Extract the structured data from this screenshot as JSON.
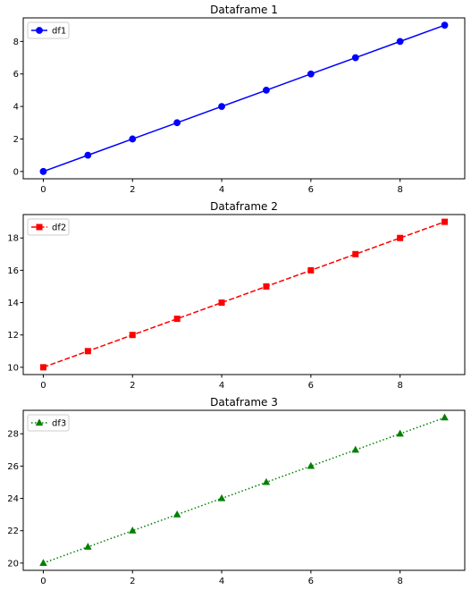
{
  "chart_data": [
    {
      "type": "line",
      "title": "Dataframe 1",
      "x": [
        0,
        1,
        2,
        3,
        4,
        5,
        6,
        7,
        8,
        9
      ],
      "series": [
        {
          "name": "df1",
          "values": [
            0,
            1,
            2,
            3,
            4,
            5,
            6,
            7,
            8,
            9
          ],
          "color": "#0000ff",
          "marker": "circle",
          "linestyle": "solid"
        }
      ],
      "xlim": [
        -0.45,
        9.45
      ],
      "ylim": [
        -0.45,
        9.45
      ],
      "xticks": [
        0,
        2,
        4,
        6,
        8
      ],
      "yticks": [
        0,
        2,
        4,
        6,
        8
      ],
      "legend": "upper-left",
      "grid": false
    },
    {
      "type": "line",
      "title": "Dataframe 2",
      "x": [
        0,
        1,
        2,
        3,
        4,
        5,
        6,
        7,
        8,
        9
      ],
      "series": [
        {
          "name": "df2",
          "values": [
            10,
            11,
            12,
            13,
            14,
            15,
            16,
            17,
            18,
            19
          ],
          "color": "#ff0000",
          "marker": "square",
          "linestyle": "dashed"
        }
      ],
      "xlim": [
        -0.45,
        9.45
      ],
      "ylim": [
        9.55,
        19.45
      ],
      "xticks": [
        0,
        2,
        4,
        6,
        8
      ],
      "yticks": [
        10,
        12,
        14,
        16,
        18
      ],
      "legend": "upper-left",
      "grid": false
    },
    {
      "type": "line",
      "title": "Dataframe 3",
      "x": [
        0,
        1,
        2,
        3,
        4,
        5,
        6,
        7,
        8,
        9
      ],
      "series": [
        {
          "name": "df3",
          "values": [
            20,
            21,
            22,
            23,
            24,
            25,
            26,
            27,
            28,
            29
          ],
          "color": "#008000",
          "marker": "triangle",
          "linestyle": "dotted"
        }
      ],
      "xlim": [
        -0.45,
        9.45
      ],
      "ylim": [
        19.55,
        29.45
      ],
      "xticks": [
        0,
        2,
        4,
        6,
        8
      ],
      "yticks": [
        20,
        22,
        24,
        26,
        28
      ],
      "legend": "upper-left",
      "grid": false
    }
  ]
}
